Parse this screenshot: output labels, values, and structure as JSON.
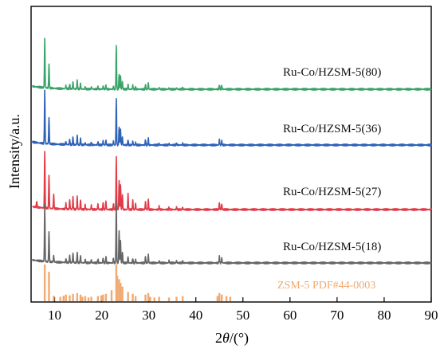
{
  "chart_data": {
    "type": "line",
    "title": "",
    "xlabel_pre": "2",
    "xlabel_theta": "θ",
    "xlabel_post": "/(°)",
    "ylabel": "Intensity/a.u.",
    "xlim": [
      5,
      90
    ],
    "x_ticks": [
      10,
      20,
      30,
      40,
      50,
      60,
      70,
      80,
      90
    ],
    "y_ticks_shown": false,
    "grid": false,
    "series": [
      {
        "name": "Ru-Co/HZSM-5(80)",
        "color": "#3aa36a",
        "peaks": [
          [
            7.9,
            62
          ],
          [
            8.8,
            30
          ],
          [
            12.4,
            4
          ],
          [
            13.2,
            6
          ],
          [
            13.9,
            9
          ],
          [
            14.8,
            11
          ],
          [
            15.5,
            7
          ],
          [
            16.5,
            3
          ],
          [
            17.8,
            3
          ],
          [
            19.2,
            3
          ],
          [
            20.3,
            4
          ],
          [
            20.9,
            5
          ],
          [
            22.5,
            4
          ],
          [
            23.1,
            54
          ],
          [
            23.7,
            19
          ],
          [
            24.0,
            17
          ],
          [
            24.4,
            9
          ],
          [
            25.6,
            6
          ],
          [
            26.6,
            5
          ],
          [
            27.2,
            3
          ],
          [
            29.3,
            6
          ],
          [
            29.9,
            8
          ],
          [
            32.2,
            2
          ],
          [
            34.3,
            2
          ],
          [
            35.9,
            2
          ],
          [
            37.2,
            2
          ],
          [
            45.0,
            6
          ],
          [
            45.5,
            5
          ]
        ]
      },
      {
        "name": "Ru-Co/HZSM-5(36)",
        "color": "#2e62b8",
        "peaks": [
          [
            7.9,
            66
          ],
          [
            8.8,
            33
          ],
          [
            12.4,
            4
          ],
          [
            13.2,
            7
          ],
          [
            13.9,
            10
          ],
          [
            14.8,
            12
          ],
          [
            15.5,
            8
          ],
          [
            16.5,
            3
          ],
          [
            17.8,
            3
          ],
          [
            19.2,
            4
          ],
          [
            20.3,
            5
          ],
          [
            20.9,
            6
          ],
          [
            22.5,
            5
          ],
          [
            23.1,
            58
          ],
          [
            23.7,
            22
          ],
          [
            24.0,
            19
          ],
          [
            24.4,
            10
          ],
          [
            25.6,
            7
          ],
          [
            26.6,
            5
          ],
          [
            27.2,
            3
          ],
          [
            29.3,
            7
          ],
          [
            29.9,
            9
          ],
          [
            32.2,
            2
          ],
          [
            34.3,
            2
          ],
          [
            35.9,
            2
          ],
          [
            37.2,
            2
          ],
          [
            45.0,
            7
          ],
          [
            45.5,
            5
          ]
        ]
      },
      {
        "name": "Ru-Co/HZSM-5(27)",
        "color": "#e03b47",
        "peaks": [
          [
            6.2,
            8
          ],
          [
            7.9,
            72
          ],
          [
            8.8,
            42
          ],
          [
            9.8,
            18
          ],
          [
            12.4,
            7
          ],
          [
            13.2,
            12
          ],
          [
            13.9,
            15
          ],
          [
            14.8,
            16
          ],
          [
            15.5,
            12
          ],
          [
            16.5,
            6
          ],
          [
            17.8,
            5
          ],
          [
            19.2,
            7
          ],
          [
            20.3,
            9
          ],
          [
            20.9,
            10
          ],
          [
            22.5,
            8
          ],
          [
            23.1,
            66
          ],
          [
            23.7,
            36
          ],
          [
            24.0,
            32
          ],
          [
            24.4,
            18
          ],
          [
            25.6,
            20
          ],
          [
            26.6,
            12
          ],
          [
            27.2,
            8
          ],
          [
            29.3,
            10
          ],
          [
            29.9,
            14
          ],
          [
            32.2,
            4
          ],
          [
            34.3,
            3
          ],
          [
            35.9,
            3
          ],
          [
            37.2,
            3
          ],
          [
            45.0,
            9
          ],
          [
            45.5,
            7
          ]
        ]
      },
      {
        "name": "Ru-Co/HZSM-5(18)",
        "color": "#666666",
        "peaks": [
          [
            7.9,
            72
          ],
          [
            8.8,
            38
          ],
          [
            9.8,
            8
          ],
          [
            12.4,
            5
          ],
          [
            13.2,
            9
          ],
          [
            13.9,
            12
          ],
          [
            14.8,
            13
          ],
          [
            15.5,
            9
          ],
          [
            16.5,
            4
          ],
          [
            17.8,
            4
          ],
          [
            19.2,
            5
          ],
          [
            20.3,
            6
          ],
          [
            20.9,
            8
          ],
          [
            22.5,
            6
          ],
          [
            23.1,
            78
          ],
          [
            23.7,
            40
          ],
          [
            24.0,
            28
          ],
          [
            24.4,
            14
          ],
          [
            25.6,
            8
          ],
          [
            26.6,
            6
          ],
          [
            27.2,
            4
          ],
          [
            29.3,
            8
          ],
          [
            29.9,
            11
          ],
          [
            32.2,
            3
          ],
          [
            34.3,
            3
          ],
          [
            35.9,
            3
          ],
          [
            37.2,
            2
          ],
          [
            45.0,
            8
          ],
          [
            45.5,
            6
          ]
        ]
      }
    ],
    "reference": {
      "name": "ZSM-5 PDF#44-0003",
      "color": "#f0aa72",
      "sticks": [
        [
          7.9,
          100
        ],
        [
          8.8,
          80
        ],
        [
          9.8,
          15
        ],
        [
          11.2,
          12
        ],
        [
          11.9,
          15
        ],
        [
          12.4,
          18
        ],
        [
          13.2,
          16
        ],
        [
          13.9,
          20
        ],
        [
          14.8,
          22
        ],
        [
          15.5,
          18
        ],
        [
          15.9,
          12
        ],
        [
          16.5,
          14
        ],
        [
          17.2,
          10
        ],
        [
          17.8,
          12
        ],
        [
          19.2,
          14
        ],
        [
          19.9,
          16
        ],
        [
          20.3,
          18
        ],
        [
          20.9,
          20
        ],
        [
          22.1,
          30
        ],
        [
          23.1,
          100
        ],
        [
          23.3,
          70
        ],
        [
          23.7,
          60
        ],
        [
          24.0,
          50
        ],
        [
          24.4,
          40
        ],
        [
          25.6,
          25
        ],
        [
          26.6,
          20
        ],
        [
          27.2,
          14
        ],
        [
          29.3,
          18
        ],
        [
          29.9,
          22
        ],
        [
          30.3,
          12
        ],
        [
          31.2,
          10
        ],
        [
          32.2,
          12
        ],
        [
          34.3,
          10
        ],
        [
          35.9,
          12
        ],
        [
          37.2,
          14
        ],
        [
          44.6,
          14
        ],
        [
          45.0,
          22
        ],
        [
          45.5,
          18
        ],
        [
          46.5,
          14
        ],
        [
          47.3,
          12
        ]
      ]
    }
  }
}
